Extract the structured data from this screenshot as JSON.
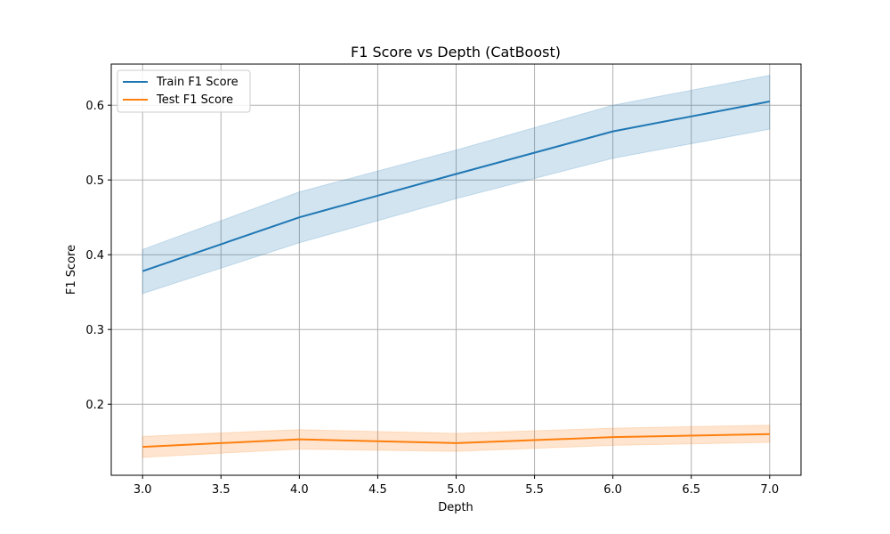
{
  "chart_data": {
    "type": "line",
    "title": "F1 Score vs Depth (CatBoost)",
    "xlabel": "Depth",
    "ylabel": "F1 Score",
    "xlim": [
      2.8,
      7.2
    ],
    "ylim": [
      0.105,
      0.655
    ],
    "xticks": [
      3.0,
      3.5,
      4.0,
      4.5,
      5.0,
      5.5,
      6.0,
      6.5,
      7.0
    ],
    "xtick_labels": [
      "3.0",
      "3.5",
      "4.0",
      "4.5",
      "5.0",
      "5.5",
      "6.0",
      "6.5",
      "7.0"
    ],
    "yticks": [
      0.2,
      0.3,
      0.4,
      0.5,
      0.6
    ],
    "ytick_labels": [
      "0.2",
      "0.3",
      "0.4",
      "0.5",
      "0.6"
    ],
    "grid": true,
    "legend_position": "top-left",
    "x": [
      3,
      4,
      5,
      6,
      7
    ],
    "series": [
      {
        "name": "Train F1 Score",
        "color": "#1f77b4",
        "band_color": "#1f77b4",
        "values": [
          0.378,
          0.45,
          0.508,
          0.565,
          0.605
        ],
        "lower": [
          0.348,
          0.416,
          0.475,
          0.529,
          0.568
        ],
        "upper": [
          0.407,
          0.484,
          0.54,
          0.6,
          0.64
        ]
      },
      {
        "name": "Test F1 Score",
        "color": "#ff7f0e",
        "band_color": "#ff7f0e",
        "values": [
          0.143,
          0.153,
          0.148,
          0.156,
          0.16
        ],
        "lower": [
          0.129,
          0.14,
          0.137,
          0.145,
          0.149
        ],
        "upper": [
          0.157,
          0.166,
          0.161,
          0.168,
          0.172
        ]
      }
    ]
  }
}
